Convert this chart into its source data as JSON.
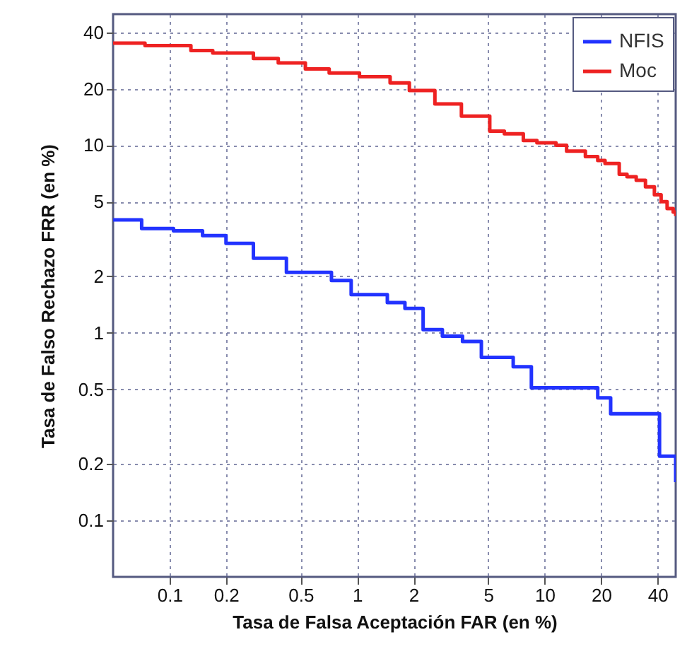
{
  "chart_data": {
    "type": "step",
    "xlabel": "Tasa de Falsa Aceptación FAR (en %)",
    "ylabel": "Tasa de Falso Rechazo FRR (en %)",
    "xlim": [
      0.05,
      50
    ],
    "ylim": [
      0.05,
      50
    ],
    "xticks": [
      0.1,
      0.2,
      0.5,
      1,
      2,
      5,
      10,
      20,
      40
    ],
    "yticks": [
      0.1,
      0.2,
      0.5,
      1,
      2,
      5,
      10,
      20,
      40
    ],
    "grid": true,
    "log": "xy",
    "legend": "top right",
    "line_style": "solid",
    "series": [
      {
        "name": "NFIS",
        "color": "#2233ff",
        "x": [
          0.05,
          0.071,
          0.105,
          0.15,
          0.2,
          0.28,
          0.42,
          0.73,
          0.93,
          1.45,
          1.8,
          2.25,
          2.85,
          3.65,
          4.6,
          6.8,
          8.5,
          19.2,
          22.5,
          41,
          50
        ],
        "values": [
          4,
          3.6,
          3.5,
          3.3,
          3,
          2.5,
          2.1,
          1.9,
          1.6,
          1.45,
          1.35,
          1.04,
          0.96,
          0.9,
          0.74,
          0.66,
          0.51,
          0.45,
          0.37,
          0.22,
          0.16
        ]
      },
      {
        "name": "Moc",
        "color": "#ee2222",
        "x": [
          0.05,
          0.074,
          0.13,
          0.17,
          0.28,
          0.38,
          0.53,
          0.71,
          1.03,
          1.5,
          1.9,
          2.6,
          3.6,
          5.1,
          6.1,
          7.7,
          9.1,
          11.5,
          13.1,
          16.5,
          19.2,
          21,
          25,
          27.5,
          30.8,
          34.5,
          38.5,
          41.8,
          45,
          48.5,
          50
        ],
        "values": [
          35,
          34,
          32,
          31,
          29,
          27.5,
          25.5,
          24.3,
          23.2,
          21.5,
          19.6,
          16.6,
          14.3,
          11.9,
          11.5,
          10.6,
          10.3,
          10,
          9.3,
          8.7,
          8.3,
          8,
          7,
          6.8,
          6.5,
          6,
          5.45,
          5,
          4.6,
          4.4,
          4.2
        ]
      }
    ]
  }
}
